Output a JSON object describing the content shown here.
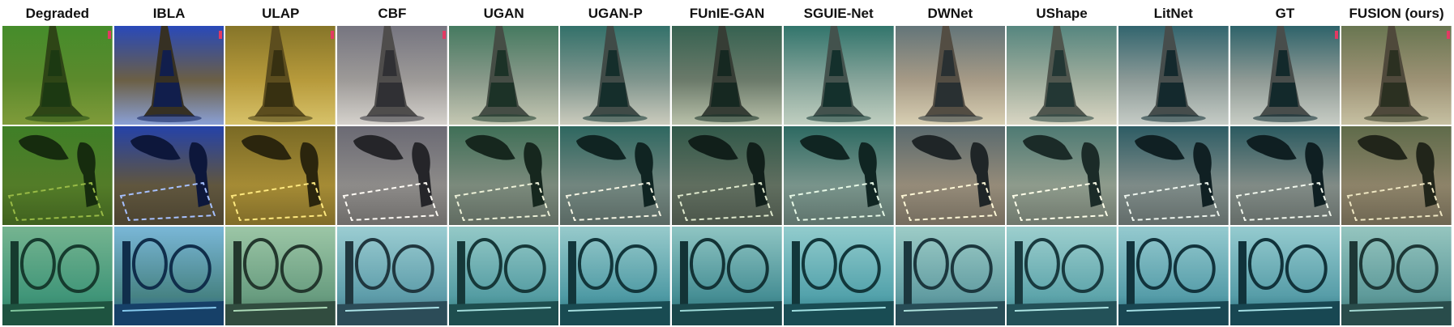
{
  "columns": [
    {
      "label": "Degraded",
      "tint": [
        "#3f7f27",
        "#5c8a2c",
        "#7f9b3a"
      ],
      "marker": true
    },
    {
      "label": "IBLA",
      "tint": [
        "#2542a8",
        "#6b5f45",
        "#8aa0d6"
      ],
      "marker": true
    },
    {
      "label": "ULAP",
      "tint": [
        "#7a6a25",
        "#b79a3b",
        "#d7c26a"
      ],
      "marker": true
    },
    {
      "label": "CBF",
      "tint": [
        "#6b6a74",
        "#9d9a98",
        "#d5d1cc"
      ],
      "marker": true
    },
    {
      "label": "UGAN",
      "tint": [
        "#3f6f57",
        "#89998a",
        "#c5c8b3"
      ],
      "marker": false
    },
    {
      "label": "UGAN-P",
      "tint": [
        "#2e6760",
        "#7f958d",
        "#cbcbbd"
      ],
      "marker": false
    },
    {
      "label": "FUnIE-GAN",
      "tint": [
        "#31594a",
        "#6b7a6a",
        "#b9c1aa"
      ],
      "marker": false
    },
    {
      "label": "SGUIE-Net",
      "tint": [
        "#2d6a62",
        "#86a49a",
        "#c0cfc0"
      ],
      "marker": false
    },
    {
      "label": "DWNet",
      "tint": [
        "#5a6a6e",
        "#a69a86",
        "#d8cfb3"
      ],
      "marker": false
    },
    {
      "label": "UShape",
      "tint": [
        "#4e7a73",
        "#9eac9c",
        "#d9d6c3"
      ],
      "marker": false
    },
    {
      "label": "LitNet",
      "tint": [
        "#2d5c64",
        "#8c9a97",
        "#c6ccc6"
      ],
      "marker": false
    },
    {
      "label": "GT",
      "tint": [
        "#2a5a60",
        "#8f9a95",
        "#c8cdc5"
      ],
      "marker": true
    },
    {
      "label": "FUSION (ours)",
      "tint": [
        "#5f6b4a",
        "#9d9275",
        "#c6c0a2"
      ],
      "marker": true
    }
  ],
  "row_tints": [
    {
      "shift": 0
    },
    {
      "shift": 1
    },
    {
      "shift": 2
    }
  ],
  "colors": {
    "background": "#ffffff",
    "marker": "#e23a63"
  }
}
